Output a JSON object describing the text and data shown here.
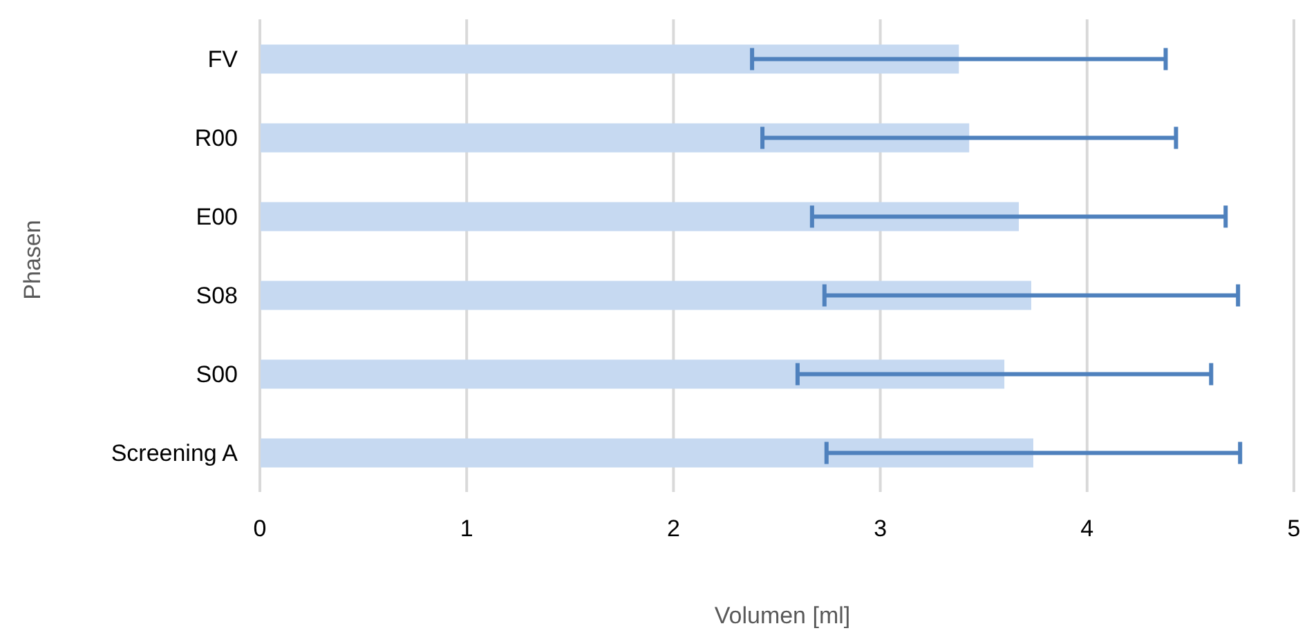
{
  "chart_data": {
    "type": "bar",
    "orientation": "horizontal",
    "categories": [
      "FV",
      "R00",
      "E00",
      "S08",
      "S00",
      "Screening A"
    ],
    "values": [
      3.38,
      3.43,
      3.67,
      3.73,
      3.6,
      3.74
    ],
    "errors": [
      1,
      1,
      1,
      1,
      1,
      1
    ],
    "color": "#c6d9f1",
    "xlim": [
      0,
      5
    ],
    "xticks": [
      0,
      1,
      2,
      3,
      4,
      5
    ],
    "grid": "x",
    "legend": false,
    "xlabel": "Volumen [ml]",
    "ylabel": "Phasen"
  }
}
